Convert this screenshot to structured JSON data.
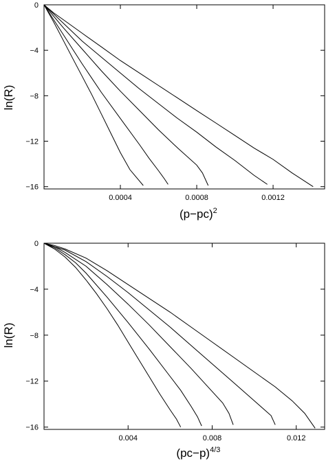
{
  "chart_data": [
    {
      "type": "line",
      "xlabel": "(p−pc)",
      "xlabel_exponent": "2",
      "ylabel": "ln(R)",
      "xlim": [
        0,
        0.00147
      ],
      "ylim": [
        -16.2,
        0
      ],
      "xticks": [
        {
          "value": 0.0004,
          "label": "0.0004"
        },
        {
          "value": 0.0008,
          "label": "0.0008"
        },
        {
          "value": 0.0012,
          "label": "0.0012"
        }
      ],
      "yticks": [
        {
          "value": 0,
          "label": "0"
        },
        {
          "value": -4,
          "label": "−4"
        },
        {
          "value": -8,
          "label": "−8"
        },
        {
          "value": -12,
          "label": "−12"
        },
        {
          "value": -16,
          "label": "−16"
        }
      ],
      "series": [
        {
          "x": [
            0,
            5e-05,
            0.0001,
            0.00015,
            0.0002,
            0.00025,
            0.0003,
            0.00035,
            0.0004,
            0.00045,
            0.00048,
            0.0005,
            0.00052
          ],
          "y": [
            0,
            -1.5,
            -3.1,
            -4.7,
            -6.3,
            -7.9,
            -9.6,
            -11.3,
            -13.0,
            -14.5,
            -15.1,
            -15.5,
            -15.9
          ]
        },
        {
          "x": [
            0,
            5e-05,
            0.0001,
            0.00015,
            0.0002,
            0.0003,
            0.0004,
            0.0005,
            0.00055,
            0.0006,
            0.00063,
            0.00065
          ],
          "y": [
            0,
            -1.3,
            -2.6,
            -3.9,
            -5.2,
            -7.7,
            -10.0,
            -12.3,
            -13.5,
            -14.6,
            -15.3,
            -15.8
          ]
        },
        {
          "x": [
            0,
            5e-05,
            0.0001,
            0.0002,
            0.0003,
            0.0004,
            0.0005,
            0.0006,
            0.0007,
            0.0008,
            0.00083,
            0.00086
          ],
          "y": [
            0,
            -1.0,
            -2.0,
            -3.9,
            -5.8,
            -7.6,
            -9.3,
            -11.0,
            -12.6,
            -14.1,
            -14.8,
            -15.9
          ]
        },
        {
          "x": [
            0,
            5e-05,
            0.0001,
            0.0002,
            0.0003,
            0.0004,
            0.0005,
            0.0006,
            0.0007,
            0.0008,
            0.0009,
            0.001,
            0.0011,
            0.00117
          ],
          "y": [
            0,
            -0.8,
            -1.6,
            -3.2,
            -4.6,
            -6.0,
            -7.4,
            -8.7,
            -10.0,
            -11.2,
            -12.5,
            -13.7,
            -15.0,
            -15.8
          ]
        },
        {
          "x": [
            0,
            5e-05,
            0.0001,
            0.0002,
            0.0003,
            0.0004,
            0.0005,
            0.0006,
            0.0007,
            0.0008,
            0.0009,
            0.001,
            0.0011,
            0.0012,
            0.0013,
            0.00141
          ],
          "y": [
            0,
            -0.7,
            -1.3,
            -2.5,
            -3.7,
            -4.9,
            -6.0,
            -7.1,
            -8.2,
            -9.3,
            -10.4,
            -11.5,
            -12.6,
            -13.6,
            -14.8,
            -16.0
          ]
        }
      ]
    },
    {
      "type": "line",
      "xlabel": "(pc−p)",
      "xlabel_exponent": "4/3",
      "ylabel": "ln(R)",
      "xlim": [
        0,
        0.01335
      ],
      "ylim": [
        -16.2,
        0
      ],
      "xticks": [
        {
          "value": 0.004,
          "label": "0.004"
        },
        {
          "value": 0.008,
          "label": "0.008"
        },
        {
          "value": 0.012,
          "label": "0.012"
        }
      ],
      "yticks": [
        {
          "value": 0,
          "label": "0"
        },
        {
          "value": -4,
          "label": "−4"
        },
        {
          "value": -8,
          "label": "−8"
        },
        {
          "value": -12,
          "label": "−12"
        },
        {
          "value": -16,
          "label": "−16"
        }
      ],
      "series": [
        {
          "x": [
            0,
            0.0005,
            0.001,
            0.0015,
            0.002,
            0.0025,
            0.003,
            0.0035,
            0.004,
            0.0045,
            0.005,
            0.0055,
            0.006,
            0.0063,
            0.0065
          ],
          "y": [
            0,
            -0.5,
            -1.2,
            -2.1,
            -3.2,
            -4.4,
            -5.7,
            -7.1,
            -8.6,
            -10.1,
            -11.6,
            -13.1,
            -14.5,
            -15.3,
            -16.0
          ]
        },
        {
          "x": [
            0,
            0.0005,
            0.001,
            0.0015,
            0.002,
            0.003,
            0.004,
            0.005,
            0.006,
            0.0065,
            0.007,
            0.0073,
            0.0075
          ],
          "y": [
            0,
            -0.4,
            -1.0,
            -1.7,
            -2.6,
            -4.7,
            -6.9,
            -9.2,
            -11.6,
            -12.8,
            -14.2,
            -15.1,
            -15.9
          ]
        },
        {
          "x": [
            0,
            0.0005,
            0.001,
            0.002,
            0.003,
            0.004,
            0.005,
            0.006,
            0.007,
            0.008,
            0.0085,
            0.0088,
            0.009
          ],
          "y": [
            0,
            -0.3,
            -0.8,
            -2.0,
            -3.6,
            -5.3,
            -7.1,
            -9.0,
            -10.9,
            -12.9,
            -13.9,
            -14.8,
            -15.8
          ]
        },
        {
          "x": [
            0,
            0.0005,
            0.001,
            0.002,
            0.003,
            0.004,
            0.005,
            0.006,
            0.007,
            0.008,
            0.009,
            0.01,
            0.0108,
            0.011
          ],
          "y": [
            0,
            -0.3,
            -0.6,
            -1.6,
            -2.9,
            -4.3,
            -5.8,
            -7.3,
            -8.9,
            -10.5,
            -12.1,
            -13.7,
            -15.0,
            -15.8
          ]
        },
        {
          "x": [
            0,
            0.0005,
            0.001,
            0.002,
            0.003,
            0.004,
            0.005,
            0.006,
            0.007,
            0.008,
            0.009,
            0.01,
            0.011,
            0.0118,
            0.0124,
            0.0129
          ],
          "y": [
            0,
            -0.2,
            -0.5,
            -1.3,
            -2.4,
            -3.6,
            -4.8,
            -6.0,
            -7.3,
            -8.6,
            -9.9,
            -11.2,
            -12.5,
            -13.7,
            -14.8,
            -16.1
          ]
        }
      ]
    }
  ]
}
